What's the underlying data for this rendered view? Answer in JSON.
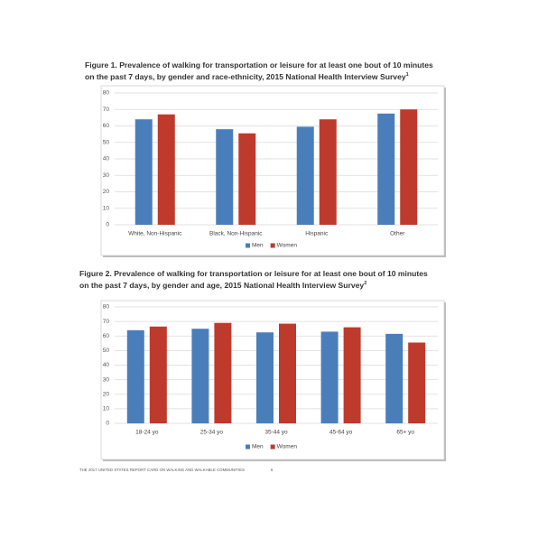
{
  "chart_data": [
    {
      "type": "bar",
      "title": [
        "Figure 1. Prevalence of walking for transportation or leisure for at least one bout of 10 minutes",
        "on the past 7 days, by gender and race-ethnicity, 2015 National Health Interview Survey"
      ],
      "title_note": "1",
      "categories": [
        "White, Non-Hispanic",
        "Black, Non-Hispanic",
        "Hispanic",
        "Other"
      ],
      "series": [
        {
          "name": "Men",
          "color": "#4a7ebb",
          "values": [
            64,
            58,
            59.5,
            67.5
          ]
        },
        {
          "name": "Women",
          "color": "#be3a2c",
          "values": [
            67,
            55.5,
            64,
            70
          ]
        }
      ],
      "ylim": [
        0,
        80
      ],
      "yticks": [
        0,
        10,
        20,
        30,
        40,
        50,
        60,
        70,
        80
      ],
      "grid": true,
      "legend": "bottom"
    },
    {
      "type": "bar",
      "title": [
        "Figure 2. Prevalence of walking for transportation or leisure for at least one bout of 10 minutes",
        "on the past 7 days, by gender and age, 2015 National Health Interview Survey"
      ],
      "title_note": "2",
      "categories": [
        "18-24 yo",
        "25-34 yo",
        "35-44 yo",
        "45-64 yo",
        "65+ yo"
      ],
      "series": [
        {
          "name": "Men",
          "color": "#4a7ebb",
          "values": [
            64,
            65,
            62.5,
            63,
            61.5
          ]
        },
        {
          "name": "Women",
          "color": "#be3a2c",
          "values": [
            66.5,
            69,
            68.5,
            66,
            55.5
          ]
        }
      ],
      "ylim": [
        0,
        80
      ],
      "yticks": [
        0,
        10,
        20,
        30,
        40,
        50,
        60,
        70,
        80
      ],
      "grid": true,
      "legend": "bottom"
    }
  ],
  "footer": {
    "text": "THE 2017 UNITED STATES REPORT CARD ON WALKING AND WALKABLE COMMUNITIES",
    "page": "6"
  }
}
